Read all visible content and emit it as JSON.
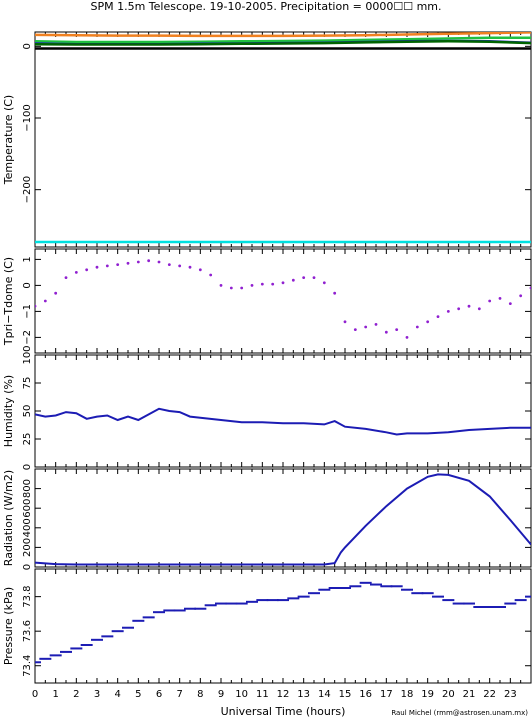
{
  "figure": {
    "title": "SPM 1.5m Telescope. 19-10-2005. Precipitation = 0000☐☐ mm.",
    "xlabel": "Universal Time (hours)",
    "credit": "Raul Michel (rmm@astrosen.unam.mx)",
    "x_ticks": [
      "0",
      "1",
      "2",
      "3",
      "4",
      "5",
      "6",
      "7",
      "8",
      "9",
      "10",
      "11",
      "12",
      "13",
      "14",
      "15",
      "16",
      "17",
      "18",
      "19",
      "20",
      "21",
      "22",
      "23"
    ]
  },
  "chart_data": [
    {
      "type": "line",
      "ylabel": "Temperature (C)",
      "xlim": [
        0,
        24
      ],
      "ylim": [
        -280,
        20
      ],
      "y_ticks": [
        "0",
        "−100",
        "−200"
      ],
      "y_tick_values": [
        0,
        -100,
        -200
      ],
      "series": [
        {
          "color": "#f08020",
          "x": [
            0,
            2,
            4,
            6,
            8,
            10,
            12,
            14,
            16,
            18,
            20,
            22,
            24
          ],
          "y": [
            16,
            15.5,
            15,
            15,
            14.5,
            14.5,
            14.5,
            15,
            15.5,
            16.5,
            17.5,
            18.5,
            19.5
          ]
        },
        {
          "color": "#20c040",
          "x": [
            0,
            2,
            4,
            6,
            8,
            10,
            12,
            14,
            16,
            18,
            20,
            22,
            24
          ],
          "y": [
            7,
            6,
            6,
            6,
            6.5,
            7,
            7.5,
            8,
            9,
            10,
            11,
            12,
            12
          ]
        },
        {
          "color": "#2020c0",
          "x": [
            0,
            2,
            4,
            6,
            8,
            10,
            12,
            14,
            16,
            18,
            20,
            22,
            24
          ],
          "y": [
            4,
            3,
            3,
            3,
            3.5,
            4,
            4.5,
            5,
            6,
            7,
            7.5,
            7,
            5
          ]
        },
        {
          "color": "#006400",
          "x": [
            0,
            2,
            4,
            6,
            8,
            10,
            12,
            14,
            16,
            18,
            20,
            22,
            24
          ],
          "y": [
            3,
            2.5,
            2.5,
            2.5,
            3,
            3.5,
            4,
            4.5,
            5.5,
            6.5,
            7,
            6.5,
            4.5
          ]
        },
        {
          "color": "#000000",
          "x": [
            0,
            24
          ],
          "y": [
            -3,
            -3
          ]
        },
        {
          "color": "#00e0e0",
          "x": [
            0,
            24
          ],
          "y": [
            -273,
            -273
          ]
        }
      ]
    },
    {
      "type": "scatter",
      "ylabel": "Tpri−Tdome (C)",
      "xlim": [
        0,
        24
      ],
      "ylim": [
        -2.6,
        1.4
      ],
      "y_ticks": [
        "1",
        "0",
        "−1",
        "−2"
      ],
      "y_tick_values": [
        1,
        0,
        -1,
        -2
      ],
      "color": "#9020d0",
      "x": [
        0,
        0.5,
        1,
        1.5,
        2,
        2.5,
        3,
        3.5,
        4,
        4.5,
        5,
        5.5,
        6,
        6.5,
        7,
        7.5,
        8,
        8.5,
        9,
        9.5,
        10,
        10.5,
        11,
        11.5,
        12,
        12.5,
        13,
        13.5,
        14,
        14.5,
        15,
        15.5,
        16,
        16.5,
        17,
        17.5,
        18,
        18.5,
        19,
        19.5,
        20,
        20.5,
        21,
        21.5,
        22,
        22.5,
        23,
        23.5,
        24
      ],
      "y": [
        -0.8,
        -0.6,
        -0.3,
        0.3,
        0.5,
        0.6,
        0.7,
        0.75,
        0.8,
        0.85,
        0.9,
        0.95,
        0.9,
        0.8,
        0.75,
        0.7,
        0.6,
        0.4,
        0.0,
        -0.1,
        -0.1,
        0.0,
        0.05,
        0.05,
        0.1,
        0.2,
        0.3,
        0.3,
        0.1,
        -0.3,
        -1.4,
        -1.7,
        -1.6,
        -1.5,
        -1.8,
        -1.7,
        -2.0,
        -1.6,
        -1.4,
        -1.2,
        -1.0,
        -0.9,
        -0.8,
        -0.9,
        -0.6,
        -0.5,
        -0.7,
        -0.4,
        -0.1
      ]
    },
    {
      "type": "line",
      "ylabel": "Humidity (%)",
      "xlim": [
        0,
        24
      ],
      "ylim": [
        0,
        100
      ],
      "y_ticks": [
        "0",
        "25",
        "50",
        "75",
        "100"
      ],
      "y_tick_values": [
        0,
        25,
        50,
        75,
        100
      ],
      "color": "#1c1cb4",
      "x": [
        0,
        0.5,
        1,
        1.5,
        2,
        2.5,
        3,
        3.5,
        4,
        4.5,
        5,
        5.5,
        6,
        6.5,
        7,
        7.5,
        8,
        9,
        10,
        11,
        12,
        13,
        14,
        14.5,
        15,
        16,
        17,
        17.5,
        18,
        19,
        20,
        21,
        22,
        23,
        24
      ],
      "y": [
        47,
        45,
        46,
        49,
        48,
        43,
        45,
        46,
        42,
        45,
        42,
        47,
        52,
        50,
        49,
        45,
        44,
        42,
        40,
        40,
        39,
        39,
        38,
        41,
        36,
        34,
        31,
        29,
        30,
        30,
        31,
        33,
        34,
        35,
        35
      ]
    },
    {
      "type": "line",
      "ylabel": "Radiation (W/m2)",
      "xlim": [
        0,
        24
      ],
      "ylim": [
        0,
        1000
      ],
      "y_ticks": [
        "0",
        "200",
        "400",
        "600",
        "800"
      ],
      "y_tick_values": [
        0,
        200,
        400,
        600,
        800
      ],
      "color": "#1c1cb4",
      "x": [
        0,
        1,
        2,
        4,
        6,
        8,
        10,
        12,
        14,
        14.5,
        14.8,
        15,
        16,
        17,
        18,
        19,
        19.5,
        20,
        21,
        22,
        23,
        24
      ],
      "y": [
        45,
        30,
        25,
        25,
        25,
        25,
        25,
        25,
        25,
        40,
        150,
        200,
        420,
        620,
        800,
        920,
        945,
        940,
        880,
        720,
        480,
        230
      ]
    },
    {
      "type": "scatter",
      "ylabel": "Pressure (kPa)",
      "xlim": [
        0,
        24
      ],
      "ylim": [
        73.3,
        73.96
      ],
      "y_ticks": [
        "73.4",
        "73.6",
        "73.8"
      ],
      "y_tick_values": [
        73.4,
        73.6,
        73.8
      ],
      "color": "#1c1cb4",
      "x": [
        0,
        0.5,
        1,
        1.5,
        2,
        2.5,
        3,
        3.5,
        4,
        4.5,
        5,
        5.5,
        6,
        6.5,
        7,
        7.5,
        8,
        8.5,
        9,
        9.5,
        10,
        10.5,
        11,
        11.5,
        12,
        12.5,
        13,
        13.5,
        14,
        14.5,
        15,
        15.5,
        16,
        16.5,
        17,
        17.5,
        18,
        18.5,
        19,
        19.5,
        20,
        20.5,
        21,
        21.5,
        22,
        22.5,
        23,
        23.5,
        24
      ],
      "y": [
        73.42,
        73.44,
        73.46,
        73.48,
        73.5,
        73.52,
        73.55,
        73.57,
        73.6,
        73.62,
        73.66,
        73.68,
        73.71,
        73.72,
        73.72,
        73.73,
        73.73,
        73.75,
        73.76,
        73.76,
        73.76,
        73.77,
        73.78,
        73.78,
        73.78,
        73.79,
        73.8,
        73.82,
        73.84,
        73.85,
        73.85,
        73.86,
        73.88,
        73.87,
        73.86,
        73.86,
        73.84,
        73.82,
        73.82,
        73.8,
        73.78,
        73.76,
        73.76,
        73.74,
        73.74,
        73.74,
        73.76,
        73.78,
        73.8
      ]
    }
  ]
}
